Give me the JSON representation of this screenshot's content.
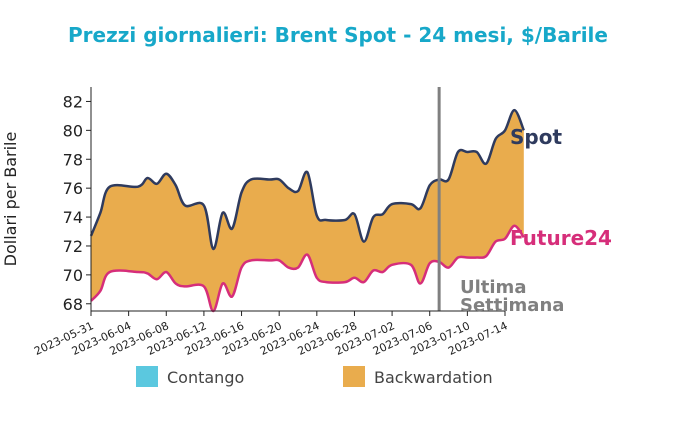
{
  "chart_data": {
    "type": "area",
    "title": "Prezzi giornalieri: Brent Spot - 24 mesi, $/Barile",
    "ylabel": "Dollari per Barile",
    "xlabel": "",
    "ylim": [
      67.5,
      83
    ],
    "yticks": [
      68,
      70,
      72,
      74,
      76,
      78,
      80,
      82
    ],
    "xticks": [
      "2023-05-31",
      "2023-06-04",
      "2023-06-08",
      "2023-06-12",
      "2023-06-16",
      "2023-06-20",
      "2023-06-24",
      "2023-06-28",
      "2023-07-02",
      "2023-07-06",
      "2023-07-10",
      "2023-07-14"
    ],
    "x_start": "2023-05-31",
    "x_end": "2023-07-14",
    "grid": false,
    "legend_position": "bottom",
    "legend": [
      {
        "label": "Contango",
        "color": "#5bc8df"
      },
      {
        "label": "Backwardation",
        "color": "#e9ac4d"
      }
    ],
    "annotation": {
      "lines": [
        "Ultima",
        "Settimana"
      ],
      "date": "2023-07-07",
      "color": "#808080"
    },
    "series": [
      {
        "name": "Spot",
        "color": "#2f3b5e",
        "points": [
          [
            "2023-05-31",
            72.7
          ],
          [
            "2023-06-01",
            74.3
          ],
          [
            "2023-06-02",
            76.1
          ],
          [
            "2023-06-05",
            76.1
          ],
          [
            "2023-06-06",
            76.7
          ],
          [
            "2023-06-07",
            76.3
          ],
          [
            "2023-06-08",
            77.0
          ],
          [
            "2023-06-09",
            76.2
          ],
          [
            "2023-06-10",
            74.8
          ],
          [
            "2023-06-12",
            74.8
          ],
          [
            "2023-06-13",
            71.8
          ],
          [
            "2023-06-14",
            74.3
          ],
          [
            "2023-06-15",
            73.2
          ],
          [
            "2023-06-16",
            75.7
          ],
          [
            "2023-06-17",
            76.6
          ],
          [
            "2023-06-19",
            76.6
          ],
          [
            "2023-06-20",
            76.6
          ],
          [
            "2023-06-21",
            76.0
          ],
          [
            "2023-06-22",
            75.8
          ],
          [
            "2023-06-23",
            77.1
          ],
          [
            "2023-06-24",
            74.1
          ],
          [
            "2023-06-25",
            73.8
          ],
          [
            "2023-06-27",
            73.8
          ],
          [
            "2023-06-28",
            74.2
          ],
          [
            "2023-06-29",
            72.3
          ],
          [
            "2023-06-30",
            74.0
          ],
          [
            "2023-07-01",
            74.2
          ],
          [
            "2023-07-02",
            74.9
          ],
          [
            "2023-07-04",
            74.9
          ],
          [
            "2023-07-05",
            74.6
          ],
          [
            "2023-07-06",
            76.2
          ],
          [
            "2023-07-07",
            76.6
          ],
          [
            "2023-07-08",
            76.6
          ],
          [
            "2023-07-09",
            78.5
          ],
          [
            "2023-07-10",
            78.5
          ],
          [
            "2023-07-11",
            78.5
          ],
          [
            "2023-07-12",
            77.7
          ],
          [
            "2023-07-13",
            79.4
          ],
          [
            "2023-07-14",
            80.0
          ],
          [
            "2023-07-15",
            81.4
          ],
          [
            "2023-07-16",
            80.0
          ]
        ]
      },
      {
        "name": "Future24",
        "color": "#d62e7a",
        "points": [
          [
            "2023-05-31",
            68.2
          ],
          [
            "2023-06-01",
            68.9
          ],
          [
            "2023-06-02",
            70.2
          ],
          [
            "2023-06-05",
            70.2
          ],
          [
            "2023-06-06",
            70.1
          ],
          [
            "2023-06-07",
            69.7
          ],
          [
            "2023-06-08",
            70.2
          ],
          [
            "2023-06-09",
            69.4
          ],
          [
            "2023-06-10",
            69.2
          ],
          [
            "2023-06-12",
            69.2
          ],
          [
            "2023-06-13",
            67.5
          ],
          [
            "2023-06-14",
            69.4
          ],
          [
            "2023-06-15",
            68.5
          ],
          [
            "2023-06-16",
            70.5
          ],
          [
            "2023-06-17",
            71.0
          ],
          [
            "2023-06-19",
            71.0
          ],
          [
            "2023-06-20",
            71.0
          ],
          [
            "2023-06-21",
            70.5
          ],
          [
            "2023-06-22",
            70.5
          ],
          [
            "2023-06-23",
            71.4
          ],
          [
            "2023-06-24",
            69.8
          ],
          [
            "2023-06-25",
            69.5
          ],
          [
            "2023-06-27",
            69.5
          ],
          [
            "2023-06-28",
            69.8
          ],
          [
            "2023-06-29",
            69.5
          ],
          [
            "2023-06-30",
            70.3
          ],
          [
            "2023-07-01",
            70.2
          ],
          [
            "2023-07-02",
            70.7
          ],
          [
            "2023-07-04",
            70.7
          ],
          [
            "2023-07-05",
            69.4
          ],
          [
            "2023-07-06",
            70.8
          ],
          [
            "2023-07-07",
            70.9
          ],
          [
            "2023-07-08",
            70.5
          ],
          [
            "2023-07-09",
            71.2
          ],
          [
            "2023-07-10",
            71.2
          ],
          [
            "2023-07-11",
            71.2
          ],
          [
            "2023-07-12",
            71.3
          ],
          [
            "2023-07-13",
            72.3
          ],
          [
            "2023-07-14",
            72.5
          ],
          [
            "2023-07-15",
            73.4
          ],
          [
            "2023-07-16",
            72.6
          ]
        ]
      }
    ]
  }
}
